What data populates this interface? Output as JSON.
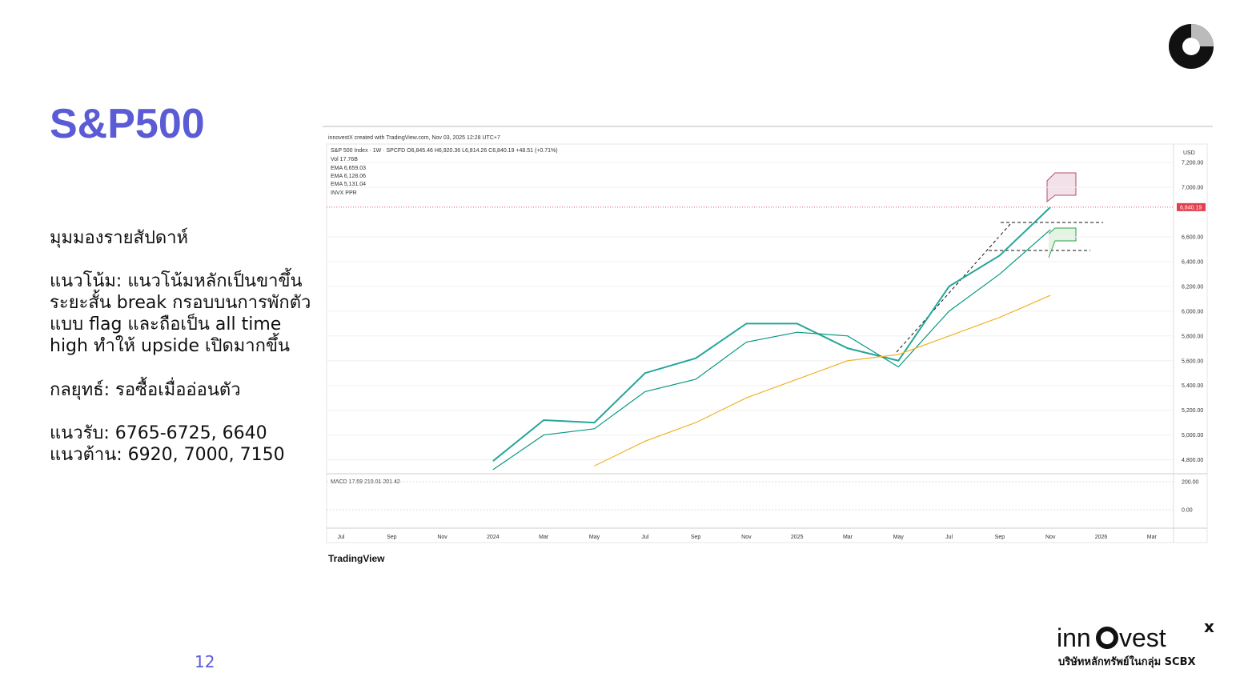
{
  "slide": {
    "title": "S&P500",
    "heading": "มุมมองรายสัปดาห์",
    "trend_lines": [
      "แนวโน้ม: แนวโน้มหลักเป็นขาขึ้น",
      "ระยะสั้น break กรอบบนการพักตัว",
      "แบบ flag และถือเป็น all time",
      "high ทำให้ upside เปิดมากขึ้น"
    ],
    "strategy": "กลยุทธ์: รอซื้อเมื่ออ่อนตัว",
    "support": "แนวรับ: 6765-6725, 6640",
    "resistance": "แนวต้าน: 6920, 7000, 7150",
    "page_number": "12",
    "brand_left": "inn",
    "brand_right": "vest",
    "brand_mark": "x",
    "brand_tagline": "บริษัทหลักทรัพย์ในกลุ่ม SCBX"
  },
  "chart_data": {
    "type": "line",
    "credit": "innovestX created with TradingView.com, Nov 03, 2025 12:28 UTC+7",
    "legend_lines": [
      "S&P 500 Index · 1W · SPCFD  O6,845.46  H6,920.36  L6,814.26  C6,840.19  +48.51 (+0.71%)",
      "Vol  17.76B",
      "EMA  6,659.03",
      "EMA  6,128.06",
      "EMA  5,131.04",
      "INVX PPR"
    ],
    "currency": "USD",
    "macd_label": "MACD  17.59  219.01  201.42",
    "footer": "TradingView",
    "categories": [
      "Jul",
      "Sep",
      "Nov",
      "2024",
      "Mar",
      "May",
      "Jul",
      "Sep",
      "Nov",
      "2025",
      "Mar",
      "May",
      "Jul",
      "Sep",
      "Nov",
      "2026",
      "Mar"
    ],
    "series": [
      {
        "name": "Close",
        "color": "#26a69a",
        "values": [
          null,
          null,
          null,
          4790,
          5120,
          5100,
          5500,
          5620,
          5900,
          5900,
          5700,
          5600,
          6200,
          6450,
          6840,
          null,
          null
        ]
      },
      {
        "name": "EMA",
        "color": "#089981",
        "values": [
          null,
          null,
          null,
          4720,
          5000,
          5050,
          5350,
          5450,
          5750,
          5830,
          5800,
          5550,
          6000,
          6300,
          6659,
          null,
          null
        ]
      },
      {
        "name": "EMA",
        "color": "#f0b429",
        "values": [
          null,
          null,
          null,
          null,
          null,
          4750,
          4950,
          5100,
          5300,
          5450,
          5600,
          5650,
          5800,
          5950,
          6128,
          null,
          null
        ]
      }
    ],
    "price_label": {
      "value": 6840.19,
      "label": "6,840.19"
    },
    "ylim": [
      4700,
      7350
    ],
    "yticks": [
      {
        "value": 4800,
        "label": "4,800.00"
      },
      {
        "value": 5000,
        "label": "5,000.00"
      },
      {
        "value": 5200,
        "label": "5,200.00"
      },
      {
        "value": 5400,
        "label": "5,400.00"
      },
      {
        "value": 5600,
        "label": "5,600.00"
      },
      {
        "value": 5800,
        "label": "5,800.00"
      },
      {
        "value": 6000,
        "label": "6,000.00"
      },
      {
        "value": 6200,
        "label": "6,200.00"
      },
      {
        "value": 6400,
        "label": "6,400.00"
      },
      {
        "value": 6600,
        "label": "6,600.00"
      },
      {
        "value": 7000,
        "label": "7,000.00"
      },
      {
        "value": 7200,
        "label": "7,200.00"
      }
    ],
    "macd_ticks": [
      {
        "value": 0,
        "label": "0.00"
      },
      {
        "value": 200,
        "label": "200.00"
      }
    ],
    "grid": true
  }
}
